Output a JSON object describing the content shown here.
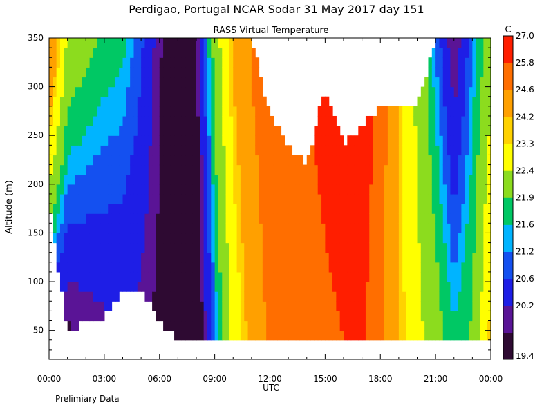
{
  "chart_data": {
    "type": "heatmap",
    "title": "Perdigao, Portugal  NCAR Sodar  31 May 2017  day 151",
    "subtitle": "RASS Virtual Temperature",
    "xlabel": "UTC",
    "ylabel": "Altitude (m)",
    "footnote": "Prelimiary Data",
    "colorbar_unit": "C",
    "x_tick_labels": [
      "00:00",
      "03:00",
      "06:00",
      "09:00",
      "12:00",
      "15:00",
      "18:00",
      "21:00",
      "00:00"
    ],
    "x_range_hours": [
      0,
      24
    ],
    "y_range": [
      20,
      350
    ],
    "y_ticks": [
      50,
      100,
      150,
      200,
      250,
      300,
      350
    ],
    "colorbar_labels": [
      "19.4",
      "20.2",
      "20.6",
      "21.2",
      "21.6",
      "21.9",
      "22.4",
      "23.3",
      "24.2",
      "24.6",
      "25.8",
      "27.0"
    ],
    "colorbar_colors": [
      "#2e0a32",
      "#5a1496",
      "#1e1ee6",
      "#1450f0",
      "#00b4ff",
      "#00c864",
      "#8cdc1e",
      "#ffff00",
      "#ffd200",
      "#ffa000",
      "#ff6e00",
      "#ff1e00"
    ],
    "missing_color": "#ffffff",
    "time_hours": [
      0,
      1,
      2,
      3,
      4,
      5,
      6,
      7,
      8,
      9,
      10,
      11,
      12,
      13,
      14,
      15,
      16,
      17,
      18,
      19,
      20,
      21,
      22,
      23,
      24
    ],
    "surface_level_m": [
      180,
      48,
      60,
      65,
      90,
      95,
      60,
      40,
      40,
      40,
      40,
      40,
      40,
      40,
      40,
      40,
      40,
      40,
      40,
      40,
      40,
      40,
      40,
      40,
      40
    ],
    "top_level_m": [
      350,
      350,
      350,
      350,
      350,
      350,
      350,
      350,
      350,
      350,
      350,
      350,
      270,
      240,
      220,
      300,
      240,
      260,
      280,
      280,
      280,
      350,
      350,
      350,
      350
    ],
    "surface_temp_c": [
      20.0,
      20.0,
      20.2,
      20.4,
      20.5,
      20.4,
      20.0,
      19.4,
      19.5,
      21.5,
      23.5,
      25.0,
      26.0,
      26.3,
      26.5,
      26.8,
      27.0,
      27.2,
      26.0,
      24.5,
      23.6,
      22.8,
      22.0,
      22.5,
      24.5
    ],
    "lapse_c_per_100m": [
      2.0,
      1.0,
      0.8,
      0.6,
      0.5,
      0.3,
      0.1,
      0.0,
      0.2,
      0.4,
      0.4,
      0.3,
      0.2,
      0.2,
      0.2,
      0.2,
      0.2,
      0.3,
      0.2,
      0.0,
      -0.2,
      -0.4,
      -0.6,
      -0.3,
      -0.5
    ]
  }
}
